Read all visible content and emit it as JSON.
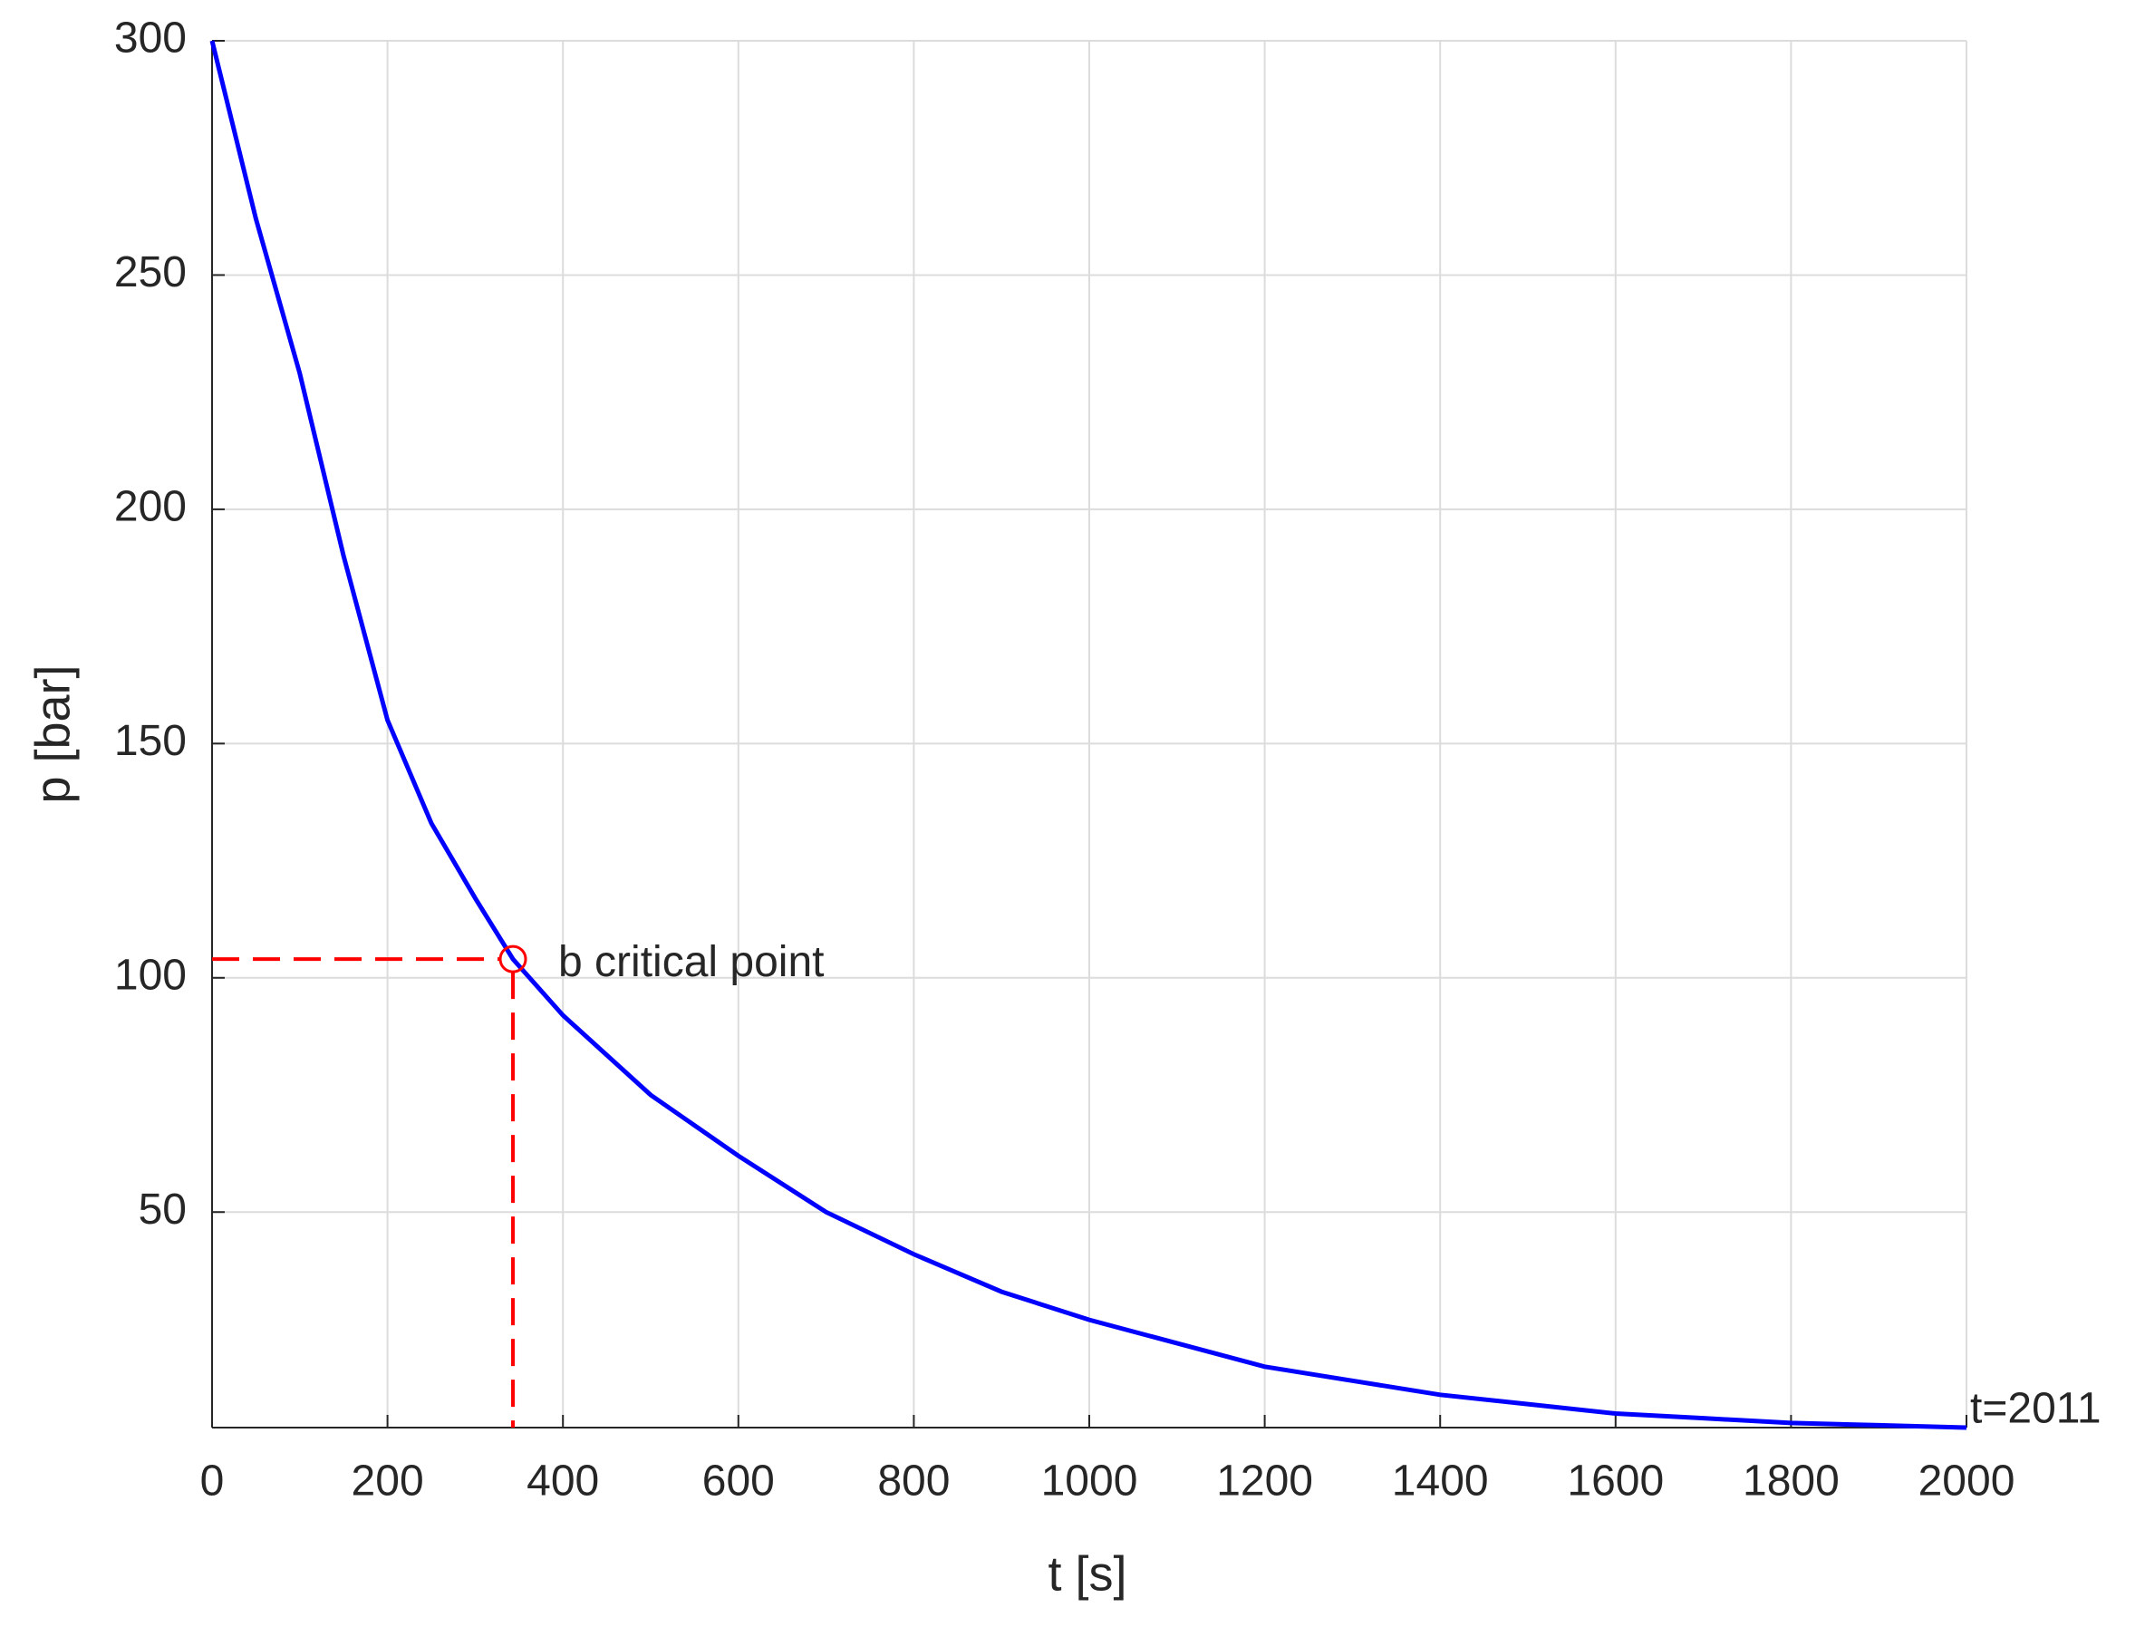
{
  "chart_data": {
    "type": "line",
    "x_label": "t [s]",
    "y_label": "p [bar]",
    "x": [
      0,
      50,
      100,
      150,
      200,
      250,
      300,
      343,
      400,
      500,
      600,
      700,
      800,
      900,
      1000,
      1100,
      1200,
      1300,
      1400,
      1500,
      1600,
      1700,
      1800,
      1900,
      2000
    ],
    "series": [
      {
        "color": "#0000ff",
        "values": [
          300,
          262,
          229,
          190,
          155,
          133,
          117,
          104,
          92,
          75,
          62,
          50,
          41,
          33,
          27,
          22,
          17,
          14,
          11,
          9,
          7,
          6,
          5,
          4.5,
          4
        ]
      }
    ],
    "critical_point": {
      "x": 343,
      "y": 104,
      "label": "b critical point",
      "color": "#ff0000"
    },
    "end_label": "t=2011",
    "xlim": [
      0,
      2000
    ],
    "ylim": [
      4,
      300
    ],
    "xticks": [
      0,
      200,
      400,
      600,
      800,
      1000,
      1200,
      1400,
      1600,
      1800,
      2000
    ],
    "yticks": [
      50,
      100,
      150,
      200,
      250,
      300
    ],
    "grid": true
  }
}
